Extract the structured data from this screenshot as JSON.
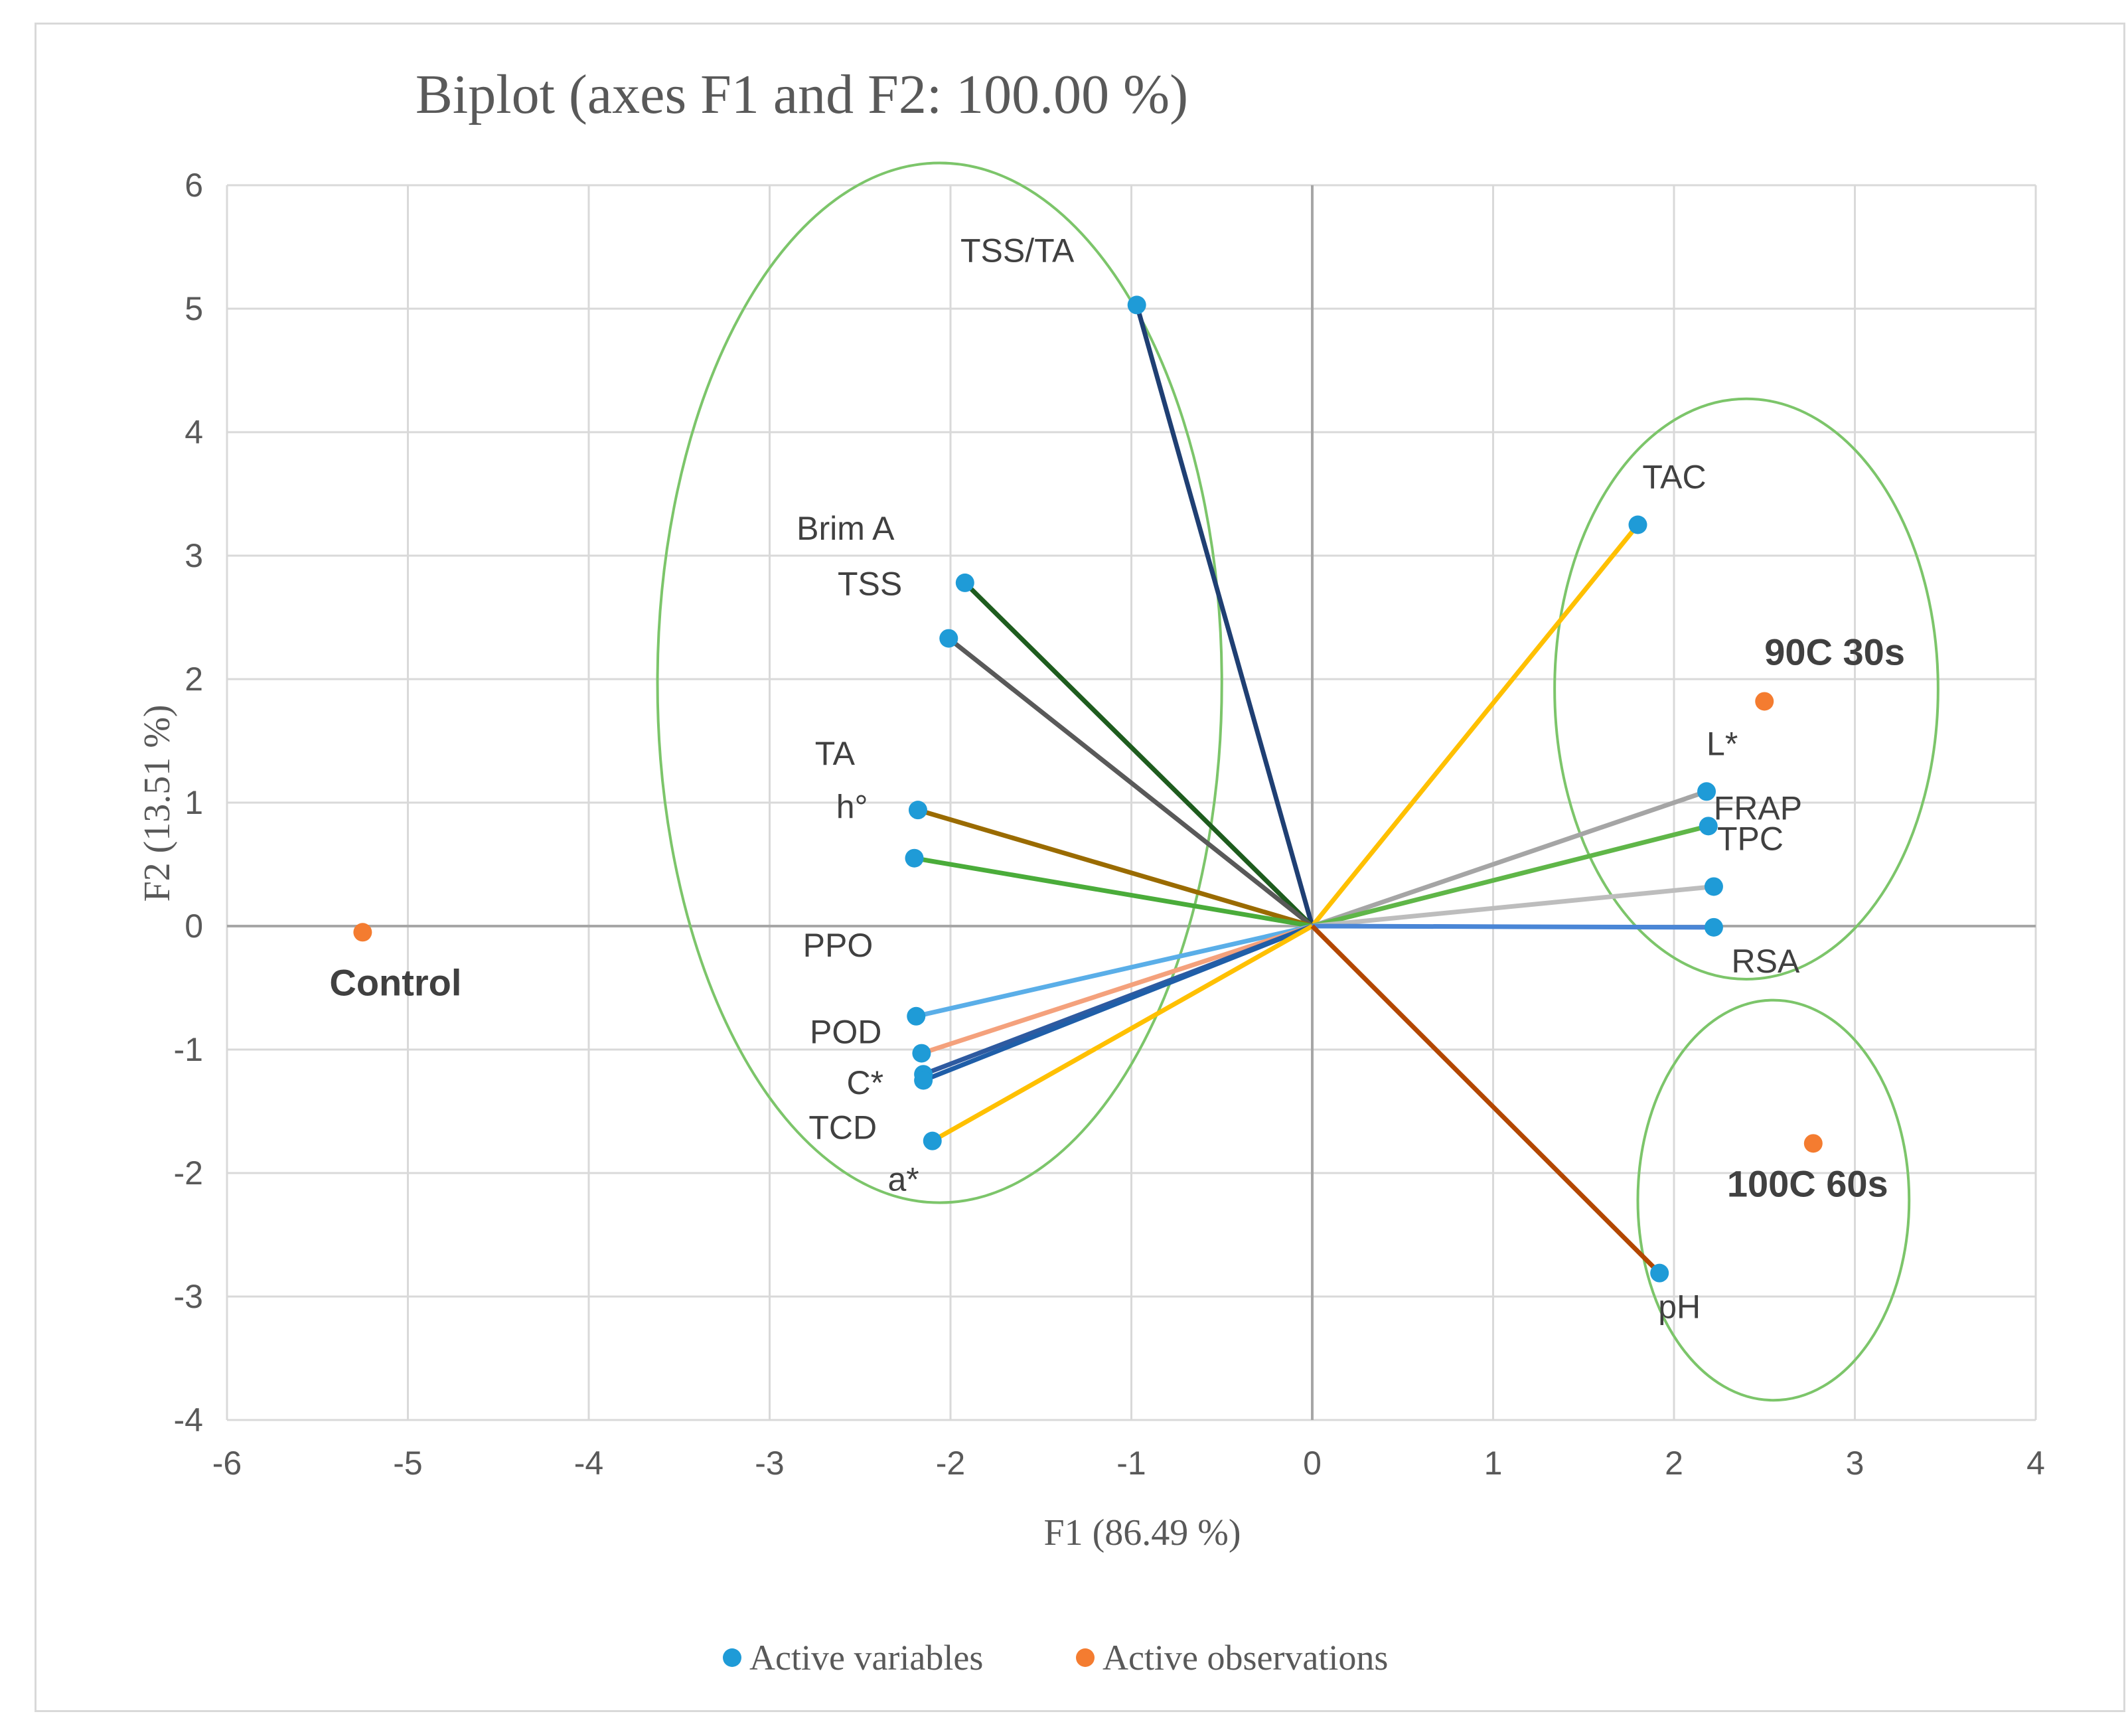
{
  "chart_data": {
    "type": "scatter",
    "subtype": "pca-biplot",
    "title": "Biplot (axes F1 and F2: 100.00 %)",
    "xlabel": "F1 (86.49 %)",
    "ylabel": "F2 (13.51 %)",
    "xlim": [
      -6,
      4
    ],
    "ylim": [
      -4,
      6
    ],
    "grid": true,
    "x_ticks": [
      "-6",
      "-5",
      "-4",
      "-3",
      "-2",
      "-1",
      "0",
      "1",
      "2",
      "3",
      "4"
    ],
    "y_ticks": [
      "-4",
      "-3",
      "-2",
      "-1",
      "0",
      "1",
      "2",
      "3",
      "4",
      "5",
      "6"
    ],
    "legend_position": "bottom",
    "legend": [
      {
        "label": "Active variables",
        "color": "#1f9bd7"
      },
      {
        "label": "Active observations",
        "color": "#f47c30"
      }
    ],
    "variables": [
      {
        "name": "TSS/TA",
        "x": -0.97,
        "y": 5.03,
        "color": "#1f3f73"
      },
      {
        "name": "TAC",
        "x": 1.8,
        "y": 3.25,
        "color": "#ffc000"
      },
      {
        "name": "Brim A",
        "x": -1.92,
        "y": 2.78,
        "color": "#1e5c1e"
      },
      {
        "name": "TSS",
        "x": -2.01,
        "y": 2.33,
        "color": "#595959"
      },
      {
        "name": "TA",
        "x": -2.18,
        "y": 0.94,
        "color": "#9a6b00"
      },
      {
        "name": "h°",
        "x": -2.2,
        "y": 0.55,
        "color": "#4aac3a"
      },
      {
        "name": "L*",
        "x": 2.18,
        "y": 1.09,
        "color": "#a5a5a5"
      },
      {
        "name": "FRAP",
        "x": 2.19,
        "y": 0.81,
        "color": "#5fb648"
      },
      {
        "name": "TPC",
        "x": 2.22,
        "y": 0.32,
        "color": "#bdbdbd"
      },
      {
        "name": "RSA",
        "x": 2.22,
        "y": -0.01,
        "color": "#4a86d6"
      },
      {
        "name": "PPO",
        "x": -2.19,
        "y": -0.73,
        "color": "#5aaee8"
      },
      {
        "name": "POD",
        "x": -2.16,
        "y": -1.03,
        "color": "#f4a17c"
      },
      {
        "name": "C*",
        "x": -2.15,
        "y": -1.2,
        "color": "#2e5aa0"
      },
      {
        "name": "TCD",
        "x": -2.15,
        "y": -1.25,
        "color": "#1f5ea8"
      },
      {
        "name": "a*",
        "x": -2.1,
        "y": -1.74,
        "color": "#ffc000"
      },
      {
        "name": "pH",
        "x": 1.92,
        "y": -2.81,
        "color": "#b34700"
      }
    ],
    "observations": [
      {
        "name": "Control",
        "x": -5.25,
        "y": -0.05
      },
      {
        "name": "90C 30s",
        "x": 2.5,
        "y": 1.82
      },
      {
        "name": "100C 60s",
        "x": 2.77,
        "y": -1.76
      }
    ],
    "ellipses": [
      {
        "group": "left",
        "cx": -2.06,
        "cy": 1.97,
        "rx": 1.56,
        "ry": 4.21,
        "color": "#7cc56a"
      },
      {
        "group": "90C 30s",
        "cx": 2.4,
        "cy": 1.92,
        "rx": 1.06,
        "ry": 2.35,
        "color": "#7cc56a"
      },
      {
        "group": "100C 60s",
        "cx": 2.55,
        "cy": -2.22,
        "rx": 0.75,
        "ry": 1.62,
        "color": "#7cc56a"
      }
    ]
  }
}
